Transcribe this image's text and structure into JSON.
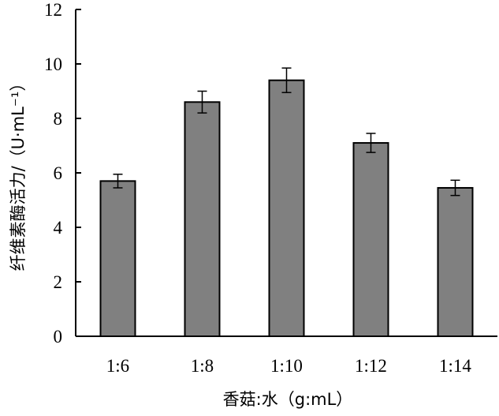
{
  "chart_data": {
    "type": "bar",
    "categories": [
      "1:6",
      "1:8",
      "1:10",
      "1:12",
      "1:14"
    ],
    "values": [
      5.7,
      8.6,
      9.4,
      7.1,
      5.45
    ],
    "errors": [
      0.25,
      0.4,
      0.45,
      0.35,
      0.28
    ],
    "xlabel": "香菇:水（g:mL）",
    "ylabel": "纤维素酶活力/（U·mL⁻¹）",
    "ylim": [
      0,
      12
    ],
    "yticks": [
      0,
      2,
      4,
      6,
      8,
      10,
      12
    ],
    "grid": false,
    "bar_color": "#808080",
    "bar_edge_color": "#000000"
  }
}
